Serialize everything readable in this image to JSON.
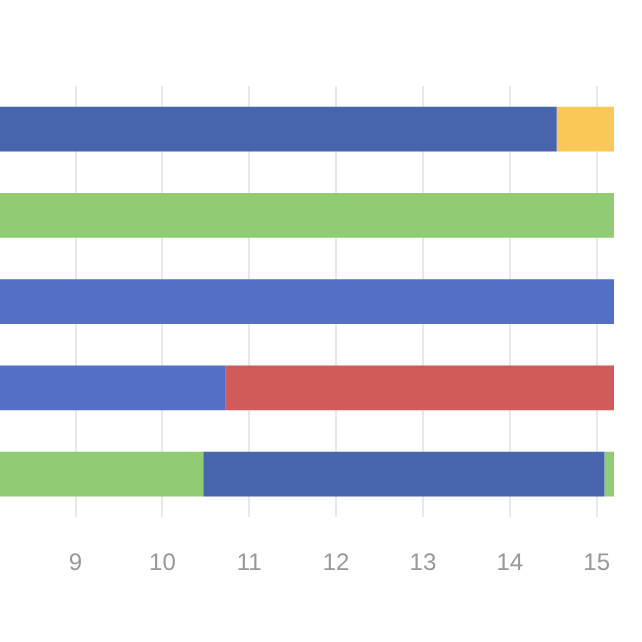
{
  "chart_data": {
    "type": "bar",
    "orientation": "horizontal",
    "categories": [
      null,
      null,
      null,
      null,
      null
    ],
    "series": [
      {
        "base": [
          8.13,
          8.13,
          8.13,
          8.13,
          8.13
        ],
        "values": [
          6.41,
          7.07,
          7.07,
          2.6,
          2.34
        ],
        "colors": [
          "#4764ad",
          "#91cc75",
          "#5470c6",
          "#5470c6",
          "#91cc75"
        ]
      },
      {
        "base": [
          14.54,
          null,
          null,
          10.73,
          10.47
        ],
        "values": [
          0.66,
          null,
          null,
          4.47,
          4.62
        ],
        "colors": [
          "#fac858",
          null,
          null,
          "#d05b5b",
          "#4764ad"
        ]
      },
      {
        "base": [
          null,
          null,
          null,
          null,
          15.09
        ],
        "values": [
          null,
          null,
          null,
          null,
          0.11
        ],
        "colors": [
          null,
          null,
          null,
          null,
          "#91cc75"
        ]
      }
    ],
    "xlim": [
      8.13,
      15.2
    ],
    "xticks": [
      9,
      10,
      11,
      12,
      13,
      14,
      15
    ],
    "grid": "x",
    "tick_labels": "x",
    "legend": false
  }
}
